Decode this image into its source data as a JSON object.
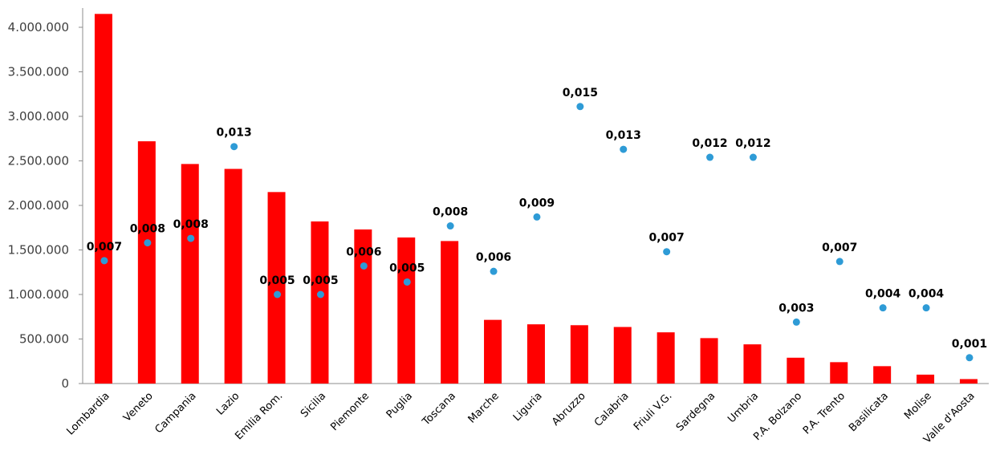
{
  "chart_data": {
    "type": "bar",
    "categories": [
      "Lombardia",
      "Veneto",
      "Campania",
      "Lazio",
      "Emilia Rom.",
      "Sicilia",
      "Piemonte",
      "Puglia",
      "Toscana",
      "Marche",
      "Liguria",
      "Abruzzo",
      "Calabria",
      "Friuli V.G.",
      "Sardegna",
      "Umbria",
      "P.A. Bolzano",
      "P.A. Trento",
      "Basilicata",
      "Molise",
      "Valle d'Aosta"
    ],
    "series": [
      {
        "type": "bar",
        "color": "#ff0000",
        "values": [
          4150000,
          2720000,
          2465000,
          2410000,
          2150000,
          1820000,
          1730000,
          1640000,
          1600000,
          715000,
          665000,
          655000,
          635000,
          575000,
          510000,
          440000,
          290000,
          240000,
          195000,
          100000,
          50000
        ]
      },
      {
        "type": "scatter",
        "color": "#2e9bd6",
        "values": [
          0.007,
          0.008,
          0.008,
          0.013,
          0.005,
          0.005,
          0.006,
          0.005,
          0.008,
          0.006,
          0.009,
          0.015,
          0.013,
          0.007,
          0.012,
          0.012,
          0.003,
          0.007,
          0.004,
          0.004,
          0.001
        ],
        "labels": [
          "0,007",
          "0,008",
          "0,008",
          "0,013",
          "0,005",
          "0,005",
          "0,006",
          "0,005",
          "0,008",
          "0,006",
          "0,009",
          "0,015",
          "0,013",
          "0,007",
          "0,012",
          "0,012",
          "0,003",
          "0,007",
          "0,004",
          "0,004",
          "0,001"
        ],
        "marker_y_on_left_axis": [
          1380000,
          1580000,
          1630000,
          2660000,
          1000000,
          1000000,
          1320000,
          1140000,
          1770000,
          1260000,
          1870000,
          3110000,
          2630000,
          1480000,
          2540000,
          2540000,
          690000,
          1370000,
          850000,
          850000,
          290000
        ]
      }
    ],
    "ylim": [
      0,
      4000000
    ],
    "yticks": [
      0,
      500000,
      1000000,
      1500000,
      2000000,
      2500000,
      3000000,
      3500000,
      4000000
    ],
    "ytick_labels": [
      "0",
      "500.000",
      "1.000.000",
      "1.500.000",
      "2.000.000",
      "2.500.000",
      "3.000.000",
      "3.500.000",
      "4.000.000"
    ],
    "grid": false,
    "legend": "none"
  }
}
